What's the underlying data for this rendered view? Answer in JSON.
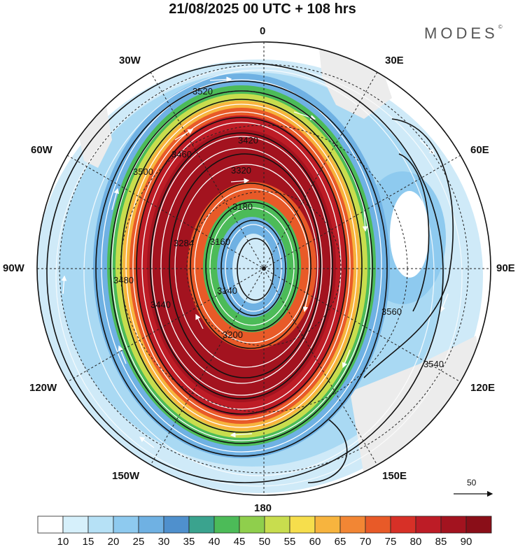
{
  "title": "21/08/2025  00 UTC  + 108 hrs",
  "brand": {
    "name": "MODES",
    "mark": "©"
  },
  "map": {
    "projection": "south-polar-stereographic",
    "longitude_labels": {
      "top": "0",
      "top_right": "30E",
      "upper_right": "60E",
      "right": "90E",
      "lower_right": "120E",
      "bottom_right": "150E",
      "bottom": "180",
      "bottom_left": "150W",
      "lower_left": "120W",
      "left": "90W",
      "upper_left": "60W",
      "top_left": "30W"
    },
    "contour_labels": [
      "3520",
      "3500",
      "3480",
      "3460",
      "3440",
      "3420",
      "3320",
      "3200",
      "3180",
      "3160",
      "3140",
      "3284",
      "3540",
      "3560"
    ],
    "reference_vector": "50"
  },
  "colorbar": {
    "levels": [
      "10",
      "15",
      "20",
      "25",
      "30",
      "35",
      "40",
      "45",
      "50",
      "55",
      "60",
      "65",
      "70",
      "75",
      "80",
      "85",
      "90"
    ],
    "colors": [
      "#ffffff",
      "#d6f0fb",
      "#b6e1f6",
      "#8ecaef",
      "#6fb1e3",
      "#4f90cd",
      "#3aa38e",
      "#4cbb58",
      "#8fcf4c",
      "#c8dd4e",
      "#f6de4c",
      "#f7b43e",
      "#f28634",
      "#e85a28",
      "#d73027",
      "#bd1c26",
      "#a3131f",
      "#8a0e18"
    ]
  },
  "colors": {
    "land": "#ececec",
    "contour": "#111111",
    "streamline": "#ffffff"
  }
}
